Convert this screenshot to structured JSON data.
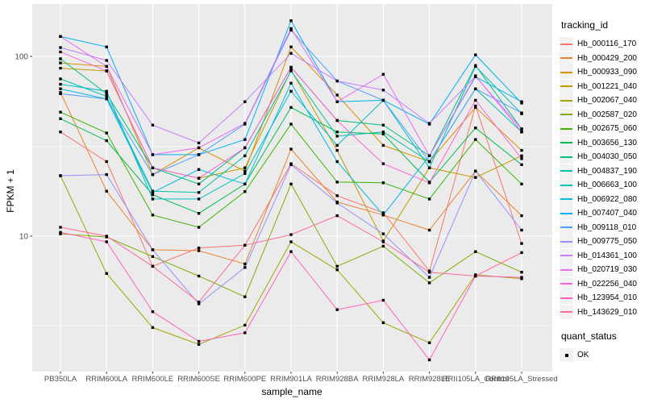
{
  "figure": {
    "background": "#FFFFFF",
    "panel_background": "#EBEBEB",
    "grid_color": "#FFFFFF",
    "axis_text_color": "#4D4D4D",
    "tick_color": "#333333",
    "point_color": "#000000"
  },
  "axes": {
    "x_title": "sample_name",
    "y_title": "FPKM + 1"
  },
  "legend": {
    "tracking_title": "tracking_id",
    "quant_title": "quant_status",
    "quant_items": [
      {
        "label": "OK",
        "icon": "black-square-point"
      }
    ]
  },
  "chart_data": {
    "type": "line",
    "title": "",
    "xlabel": "sample_name",
    "ylabel": "FPKM + 1",
    "y_scale": "log10",
    "ylim": [
      1.77,
      196
    ],
    "y_major_ticks": [
      100,
      10
    ],
    "y_minor_ticks": [
      31.62,
      3.162
    ],
    "grid": true,
    "legend_position": "right",
    "point_shape": "filled-black-square",
    "categories": [
      "PB350LA",
      "RRIM600LA",
      "RRIM600LE",
      "RRIM600SE",
      "RRIM600PE",
      "RRIM901LA",
      "RRIM928BA",
      "RRIM928LA",
      "RRIM928LE",
      "RRII105LA_Control",
      "RRII105LA_Stressed"
    ],
    "series": [
      {
        "name": "Hb_000116_170",
        "color": "#F8766D",
        "values": [
          38,
          26,
          6.8,
          8.6,
          8.9,
          25.3,
          16.8,
          13.5,
          6.4,
          53,
          9.1
        ]
      },
      {
        "name": "Hb_000429_200",
        "color": "#EA8331",
        "values": [
          63,
          17.8,
          8.4,
          8.3,
          7.0,
          30.5,
          15.5,
          13.1,
          10.8,
          23,
          13.0
        ]
      },
      {
        "name": "Hb_000933_090",
        "color": "#D89000",
        "values": [
          92,
          88,
          22,
          31,
          23,
          113,
          61,
          32,
          26,
          52,
          30
        ]
      },
      {
        "name": "Hb_001221_040",
        "color": "#C09B00",
        "values": [
          86,
          83,
          24,
          21,
          24,
          84,
          30,
          9.4,
          24,
          21.2,
          28
        ]
      },
      {
        "name": "Hb_002067_040",
        "color": "#A3A500",
        "values": [
          21.7,
          6.2,
          3.1,
          2.5,
          3.2,
          9.3,
          6.5,
          3.3,
          2.55,
          6.1,
          5.8
        ]
      },
      {
        "name": "Hb_002587_020",
        "color": "#7CAE00",
        "values": [
          10.3,
          9.9,
          7.7,
          6.0,
          4.6,
          19.5,
          6.8,
          8.8,
          5.5,
          8.2,
          6.3
        ]
      },
      {
        "name": "Hb_002675_060",
        "color": "#39B600",
        "values": [
          49,
          37.5,
          13.1,
          11.2,
          17.7,
          42,
          20,
          19.8,
          16.1,
          34.5,
          19.5
        ]
      },
      {
        "name": "Hb_003656_130",
        "color": "#00BB4E",
        "values": [
          45,
          34,
          17,
          13.4,
          19.5,
          52,
          38,
          37,
          20,
          40,
          25
        ]
      },
      {
        "name": "Hb_004030_050",
        "color": "#00BF7D",
        "values": [
          97,
          62,
          24,
          19.5,
          31,
          87,
          44,
          41.5,
          28,
          89,
          39.5
        ]
      },
      {
        "name": "Hb_004837_190",
        "color": "#00C1A3",
        "values": [
          75,
          60,
          17.8,
          17.5,
          28,
          83,
          36,
          38,
          26,
          66,
          38
        ]
      },
      {
        "name": "Hb_006663_100",
        "color": "#00BFC4",
        "values": [
          70,
          64,
          16.1,
          16.1,
          22.3,
          64,
          32,
          57,
          24,
          88,
          48
        ]
      },
      {
        "name": "Hb_006922_080",
        "color": "#00BAE0",
        "values": [
          66,
          58,
          17.5,
          23.5,
          19.5,
          71,
          26,
          13.1,
          28,
          77,
          56
        ]
      },
      {
        "name": "Hb_007407_040",
        "color": "#00B0F6",
        "values": [
          129,
          113,
          28.4,
          28.4,
          34.5,
          158,
          56,
          57,
          42,
          102,
          55
        ]
      },
      {
        "name": "Hb_009118_010",
        "color": "#529EFF",
        "values": [
          62,
          58,
          22,
          28.4,
          42,
          140,
          73,
          57,
          26,
          66,
          48.5
        ]
      },
      {
        "name": "Hb_009775_050",
        "color": "#9590FF",
        "values": [
          21.7,
          22,
          8.4,
          4.2,
          6.7,
          25,
          15.3,
          10.3,
          5.9,
          23,
          10.8
        ]
      },
      {
        "name": "Hb_014361_100",
        "color": "#C77CFF",
        "values": [
          112,
          95,
          41.5,
          33,
          56,
          104,
          73,
          65,
          42.4,
          77.5,
          39.5
        ]
      },
      {
        "name": "Hb_020719_030",
        "color": "#E76BF3",
        "values": [
          129,
          88,
          28.4,
          31,
          42.4,
          143,
          56,
          79.5,
          28,
          78,
          38
        ]
      },
      {
        "name": "Hb_022256_040",
        "color": "#FA62DB",
        "values": [
          106,
          83,
          24,
          21,
          31,
          87,
          44,
          25.3,
          19.8,
          57,
          27
        ]
      },
      {
        "name": "Hb_123954_010",
        "color": "#FF62BC",
        "values": [
          10.5,
          9.3,
          3.8,
          2.6,
          2.9,
          8.2,
          3.9,
          4.4,
          2.05,
          6.0,
          5.9
        ]
      },
      {
        "name": "Hb_143629_010",
        "color": "#FF6A98",
        "values": [
          11.2,
          10.0,
          6.8,
          4.3,
          8.9,
          10.2,
          13.0,
          9.3,
          6.3,
          6.0,
          8.1
        ]
      }
    ]
  }
}
